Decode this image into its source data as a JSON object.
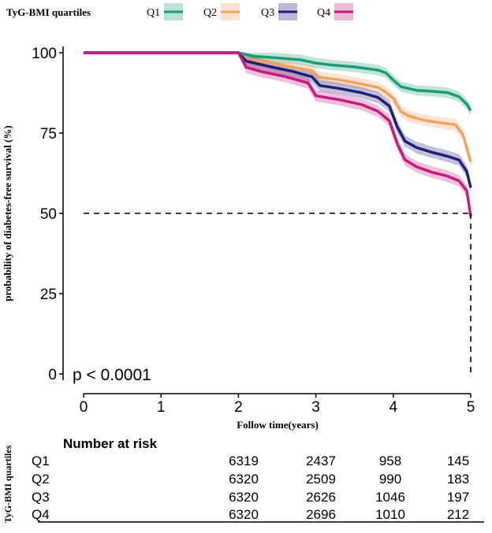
{
  "chart_data": {
    "type": "line",
    "subtype": "kaplan-meier",
    "xlabel": "Follow time(years)",
    "ylabel": "probability of diabetes-free survival (%)",
    "xlim": [
      0,
      5
    ],
    "ylim": [
      0,
      100
    ],
    "xticks": [
      0,
      1,
      2,
      3,
      4,
      5
    ],
    "yticks": [
      0,
      25,
      50,
      75,
      100
    ],
    "grid": false,
    "annotation": "p < 0.0001",
    "median_reference": {
      "y": 50,
      "x": 5
    },
    "legend": {
      "title": "TyG-BMI quartiles",
      "position": "top",
      "entries": [
        "Q1",
        "Q2",
        "Q3",
        "Q4"
      ]
    },
    "series": [
      {
        "name": "Q1",
        "color": "#1b9e77",
        "x": [
          0,
          2,
          2.2,
          2.5,
          2.8,
          3.0,
          3.2,
          3.5,
          3.8,
          3.9,
          4.0,
          4.1,
          4.3,
          4.5,
          4.7,
          4.85,
          4.95,
          5
        ],
        "y": [
          100,
          100,
          98.9,
          98.4,
          97.8,
          96.8,
          96.2,
          95.6,
          94.6,
          93.8,
          91.5,
          89.4,
          88.3,
          88.0,
          87.6,
          86.3,
          84.0,
          82
        ],
        "band": 1.6
      },
      {
        "name": "Q2",
        "color": "#f4a261",
        "x": [
          0,
          2,
          2.1,
          2.4,
          2.7,
          2.95,
          3.05,
          3.3,
          3.6,
          3.8,
          3.9,
          4.0,
          4.1,
          4.2,
          4.4,
          4.6,
          4.8,
          4.9,
          5
        ],
        "y": [
          100,
          100,
          98.0,
          96.9,
          95.6,
          94.4,
          92.3,
          91.6,
          90.2,
          89.2,
          87.8,
          85.8,
          81.7,
          80.3,
          79.0,
          78.2,
          77.6,
          74.5,
          66
        ],
        "band": 1.8
      },
      {
        "name": "Q3",
        "color": "#1f1f7a",
        "x": [
          0,
          2,
          2.1,
          2.4,
          2.7,
          2.95,
          3.05,
          3.3,
          3.6,
          3.8,
          3.95,
          4.05,
          4.15,
          4.3,
          4.5,
          4.7,
          4.85,
          4.95,
          5
        ],
        "y": [
          100,
          100,
          97.4,
          95.7,
          94.2,
          92.5,
          89.8,
          88.9,
          87.5,
          86.1,
          83.4,
          77.0,
          72.5,
          70.5,
          69.0,
          67.8,
          66.6,
          63.0,
          58
        ],
        "band": 1.8
      },
      {
        "name": "Q4",
        "color": "#c51b7d",
        "x": [
          0,
          2,
          2.1,
          2.3,
          2.6,
          2.9,
          3.0,
          3.3,
          3.6,
          3.8,
          3.95,
          4.05,
          4.15,
          4.3,
          4.5,
          4.7,
          4.85,
          4.95,
          5
        ],
        "y": [
          100,
          100,
          95.5,
          94.1,
          92.6,
          90.6,
          86.6,
          85.4,
          83.8,
          81.8,
          78.8,
          71.8,
          66.7,
          64.5,
          62.8,
          61.6,
          60.1,
          57.0,
          49
        ],
        "band": 1.8
      }
    ],
    "risk_table": {
      "title": "Number at risk",
      "row_axis_label": "TyG-BMI quartiles",
      "rows": [
        {
          "label": "Q1",
          "values": [
            "6319",
            "2437",
            "958",
            "145"
          ]
        },
        {
          "label": "Q2",
          "values": [
            "6320",
            "2509",
            "990",
            "183"
          ]
        },
        {
          "label": "Q3",
          "values": [
            "6320",
            "2626",
            "1046",
            "197"
          ]
        },
        {
          "label": "Q4",
          "values": [
            "6320",
            "2696",
            "1010",
            "212"
          ]
        }
      ]
    }
  }
}
